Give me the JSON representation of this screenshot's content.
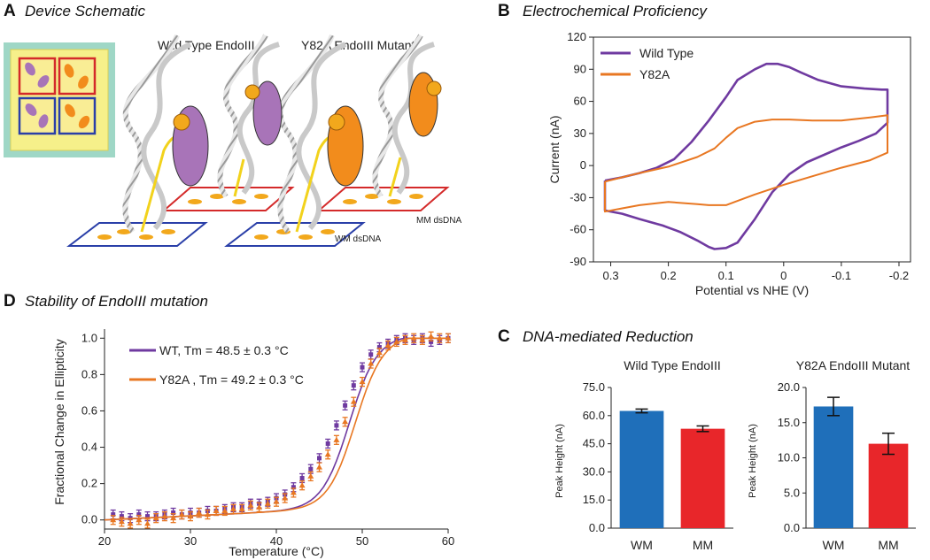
{
  "panels": {
    "A": {
      "letter": "A",
      "title": "Device Schematic",
      "label_wt": "Wild Type EndoIII",
      "label_mut": "Y82A EndoIII Mutant",
      "label_mm": "MM dsDNA",
      "label_wm": "WM dsDNA"
    },
    "B": {
      "letter": "B",
      "title": "Electrochemical Proficiency"
    },
    "C": {
      "letter": "C",
      "title": "DNA-mediated Reduction"
    },
    "D": {
      "letter": "D",
      "title": "Stability of EndoIII mutation"
    }
  },
  "colors": {
    "wt": "#6f3aa0",
    "y82a": "#e87722",
    "wm_bar": "#1f6fba",
    "mm_bar": "#e8262a",
    "protein_purple": "#a874b8",
    "protein_orange": "#f28c1c"
  },
  "chart_data": [
    {
      "id": "B",
      "type": "line",
      "title": "Electrochemical Proficiency",
      "xlabel": "Potential vs NHE (V)",
      "ylabel": "Current (nA)",
      "xlim": [
        0.33,
        -0.22
      ],
      "ylim": [
        -90,
        120
      ],
      "xticks": [
        0.3,
        0.2,
        0.1,
        0,
        -0.1,
        -0.2
      ],
      "xtick_labels": [
        "0.3",
        "0.2",
        "0.1",
        "0",
        "-0.1",
        "-0.2"
      ],
      "yticks": [
        -90,
        -60,
        -30,
        0,
        30,
        60,
        90,
        120
      ],
      "legend": [
        "Wild Type",
        "Y82A"
      ],
      "series": [
        {
          "name": "Wild Type",
          "x": [
            0.31,
            0.28,
            0.25,
            0.22,
            0.19,
            0.16,
            0.13,
            0.1,
            0.08,
            0.05,
            0.03,
            0.01,
            -0.01,
            -0.03,
            -0.06,
            -0.1,
            -0.14,
            -0.17,
            -0.18,
            -0.18,
            -0.16,
            -0.13,
            -0.1,
            -0.07,
            -0.04,
            -0.01,
            0.02,
            0.05,
            0.08,
            0.1,
            0.12,
            0.13,
            0.15,
            0.18,
            0.21,
            0.25,
            0.28,
            0.31,
            0.31
          ],
          "y": [
            -14,
            -11,
            -7,
            -2,
            6,
            22,
            42,
            64,
            80,
            90,
            95,
            95,
            92,
            87,
            80,
            74,
            72,
            71,
            71,
            40,
            30,
            23,
            17,
            10,
            3,
            -8,
            -25,
            -50,
            -72,
            -77,
            -78,
            -76,
            -70,
            -62,
            -56,
            -50,
            -45,
            -42,
            -14
          ]
        },
        {
          "name": "Y82A",
          "x": [
            0.31,
            0.28,
            0.25,
            0.2,
            0.15,
            0.12,
            0.1,
            0.08,
            0.05,
            0.02,
            -0.01,
            -0.05,
            -0.1,
            -0.15,
            -0.18,
            -0.18,
            -0.15,
            -0.1,
            -0.05,
            0,
            0.05,
            0.08,
            0.1,
            0.13,
            0.15,
            0.2,
            0.25,
            0.28,
            0.31,
            0.31
          ],
          "y": [
            -15,
            -11,
            -7,
            -1,
            8,
            16,
            26,
            35,
            41,
            43,
            43,
            42,
            42,
            45,
            47,
            12,
            5,
            -2,
            -10,
            -18,
            -27,
            -33,
            -37,
            -37,
            -36,
            -34,
            -37,
            -40,
            -43,
            -15
          ]
        }
      ]
    },
    {
      "id": "C1",
      "type": "bar",
      "title": "Wild Type EndoIII",
      "ylabel": "Peak Height (nA)",
      "categories": [
        "WM",
        "MM"
      ],
      "values": [
        62.5,
        53.0
      ],
      "errors": [
        1.0,
        1.5
      ],
      "ylim": [
        0,
        75
      ],
      "yticks": [
        0,
        15,
        30,
        45,
        60,
        75
      ],
      "ytick_labels": [
        "0.0",
        "15.0",
        "30.0",
        "45.0",
        "60.0",
        "75.0"
      ]
    },
    {
      "id": "C2",
      "type": "bar",
      "title": "Y82A EndoIII Mutant",
      "ylabel": "Peak Height (nA)",
      "categories": [
        "WM",
        "MM"
      ],
      "values": [
        17.3,
        12.0
      ],
      "errors": [
        1.3,
        1.5
      ],
      "ylim": [
        0,
        20
      ],
      "yticks": [
        0,
        5,
        10,
        15,
        20
      ],
      "ytick_labels": [
        "0.0",
        "5.0",
        "10.0",
        "15.0",
        "20.0"
      ]
    },
    {
      "id": "D",
      "type": "scatter",
      "title": "Stability of EndoIII mutation",
      "xlabel": "Temperature (°C)",
      "ylabel": "Fractional Change in Ellipticity",
      "xlim": [
        20,
        60
      ],
      "ylim": [
        -0.05,
        1.05
      ],
      "xticks": [
        20,
        30,
        40,
        50,
        60
      ],
      "yticks": [
        0,
        0.2,
        0.4,
        0.6,
        0.8,
        1.0
      ],
      "ytick_labels": [
        "0.0",
        "0.2",
        "0.4",
        "0.6",
        "0.8",
        "1.0"
      ],
      "legend": [
        "WT, Tm = 48.5 ± 0.3 °C",
        "Y82A , Tm = 49.2 ± 0.3 °C"
      ],
      "series": [
        {
          "name": "WT",
          "tm": 48.5,
          "x": [
            21,
            22,
            23,
            24,
            25,
            26,
            27,
            28,
            29,
            30,
            31,
            32,
            33,
            34,
            35,
            36,
            37,
            38,
            39,
            40,
            41,
            42,
            43,
            44,
            45,
            46,
            47,
            48,
            49,
            50,
            51,
            52,
            53,
            54,
            55,
            56,
            57,
            58,
            59,
            60
          ],
          "y": [
            0.03,
            0.02,
            0.01,
            0.03,
            0.02,
            0.02,
            0.03,
            0.04,
            0.03,
            0.04,
            0.04,
            0.05,
            0.05,
            0.06,
            0.07,
            0.07,
            0.09,
            0.09,
            0.1,
            0.12,
            0.14,
            0.18,
            0.23,
            0.28,
            0.34,
            0.42,
            0.52,
            0.63,
            0.74,
            0.84,
            0.91,
            0.95,
            0.97,
            0.99,
            1.0,
            0.99,
            1.0,
            0.98,
            0.99,
            1.0
          ]
        },
        {
          "name": "Y82A",
          "tm": 49.2,
          "x": [
            21,
            22,
            23,
            24,
            25,
            26,
            27,
            28,
            29,
            30,
            31,
            32,
            33,
            34,
            35,
            36,
            37,
            38,
            39,
            40,
            41,
            42,
            43,
            44,
            45,
            46,
            47,
            48,
            49,
            50,
            51,
            52,
            53,
            54,
            55,
            56,
            57,
            58,
            59,
            60
          ],
          "y": [
            0.0,
            -0.01,
            -0.02,
            0.0,
            -0.02,
            0.01,
            0.02,
            0.01,
            0.03,
            0.02,
            0.04,
            0.03,
            0.05,
            0.05,
            0.06,
            0.06,
            0.08,
            0.07,
            0.09,
            0.1,
            0.12,
            0.15,
            0.19,
            0.24,
            0.29,
            0.36,
            0.44,
            0.54,
            0.65,
            0.76,
            0.86,
            0.92,
            0.96,
            0.98,
            0.99,
            1.0,
            0.99,
            1.01,
            1.0,
            1.0
          ]
        }
      ]
    }
  ]
}
